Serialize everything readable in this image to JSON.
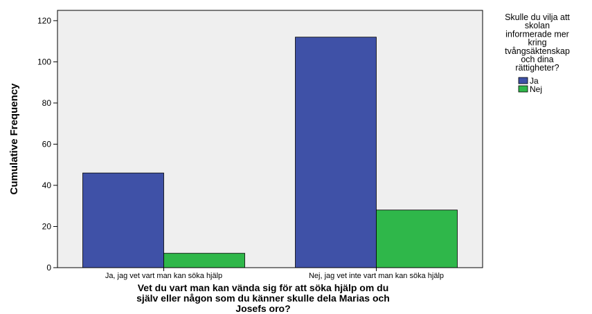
{
  "chart_data": {
    "type": "bar",
    "categories": [
      "Ja, jag vet vart man kan söka hjälp",
      "Nej, jag vet inte vart man kan söka hjälp"
    ],
    "series": [
      {
        "name": "Ja",
        "values": [
          46,
          112
        ],
        "color": "#3f51a7"
      },
      {
        "name": "Nej",
        "values": [
          7,
          28
        ],
        "color": "#2fb74a"
      }
    ],
    "ylabel": "Cumulative Frequency",
    "xlabel_lines": [
      "Vet du vart man kan vända sig för att söka hjälp om du",
      "själv eller någon som du känner skulle dela Marias och",
      "Josefs oro?"
    ],
    "ylim": [
      0,
      125
    ],
    "yticks": [
      0,
      20,
      40,
      60,
      80,
      100,
      120
    ],
    "grid": false,
    "background": "#efefef",
    "legend": {
      "position": "right",
      "title_lines": [
        "Skulle du vilja att",
        "skolan",
        "informerade mer",
        "kring",
        "tvångsäktenskap",
        "och dina",
        "rättigheter?"
      ]
    }
  }
}
